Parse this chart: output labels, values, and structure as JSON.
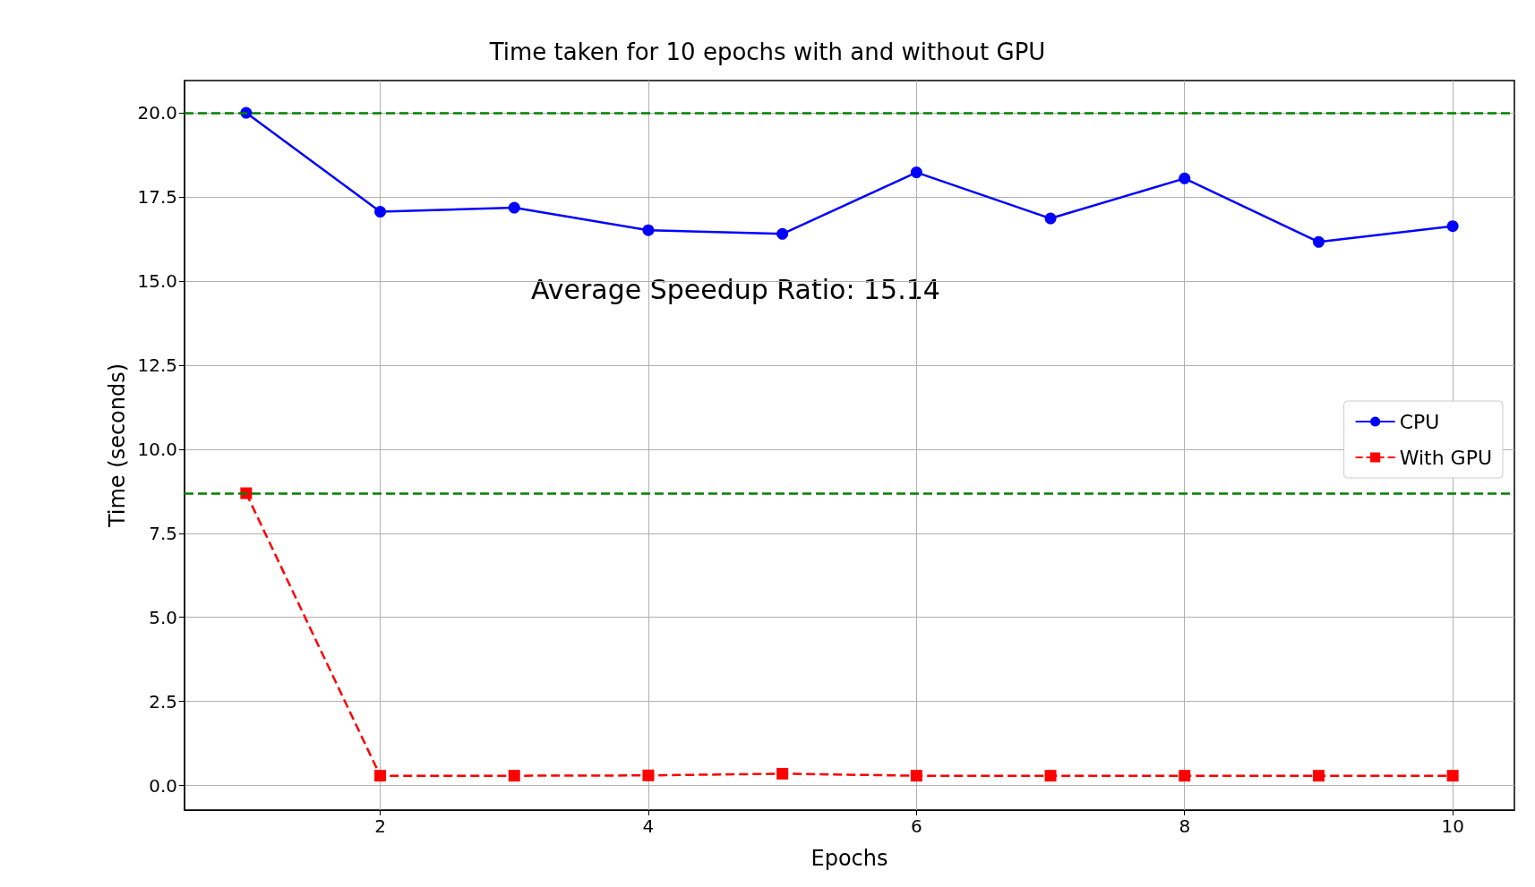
{
  "chart_data": {
    "type": "line",
    "title": "Time taken for 10 epochs with and without GPU",
    "xlabel": "Epochs",
    "ylabel": "Time (seconds)",
    "x": [
      1,
      2,
      3,
      4,
      5,
      6,
      7,
      8,
      9,
      10
    ],
    "series": [
      {
        "name": "CPU",
        "color": "#0000ff",
        "marker": "circle",
        "line_style": "solid",
        "values": [
          20.0,
          17.06,
          17.18,
          16.51,
          16.4,
          18.23,
          16.86,
          18.05,
          16.16,
          16.63
        ]
      },
      {
        "name": "With GPU",
        "color": "#ff0000",
        "marker": "square",
        "line_style": "dashed",
        "values": [
          8.69,
          0.29,
          0.29,
          0.3,
          0.35,
          0.29,
          0.29,
          0.29,
          0.29,
          0.29
        ]
      }
    ],
    "xlim": [
      0.54,
      10.46
    ],
    "xticks": [
      2,
      4,
      6,
      8,
      10
    ],
    "ylim": [
      -0.73,
      20.96
    ],
    "yticks": [
      {
        "value": 0,
        "label": "0.0"
      },
      {
        "value": 2.5,
        "label": "2.5"
      },
      {
        "value": 5,
        "label": "5.0"
      },
      {
        "value": 7.5,
        "label": "7.5"
      },
      {
        "value": 10,
        "label": "10.0"
      },
      {
        "value": 12.5,
        "label": "12.5"
      },
      {
        "value": 15,
        "label": "15.0"
      },
      {
        "value": 17.5,
        "label": "17.5"
      },
      {
        "value": 20,
        "label": "20.0"
      }
    ],
    "ref_lines": [
      {
        "axis": "y",
        "value": 20.0,
        "color": "#008000",
        "line_style": "dashed"
      },
      {
        "axis": "y",
        "value": 8.69,
        "color": "#008000",
        "line_style": "dashed"
      }
    ],
    "annotations": [
      "Average Speedup Ratio: 15.14"
    ],
    "grid": true,
    "legend": "right"
  }
}
